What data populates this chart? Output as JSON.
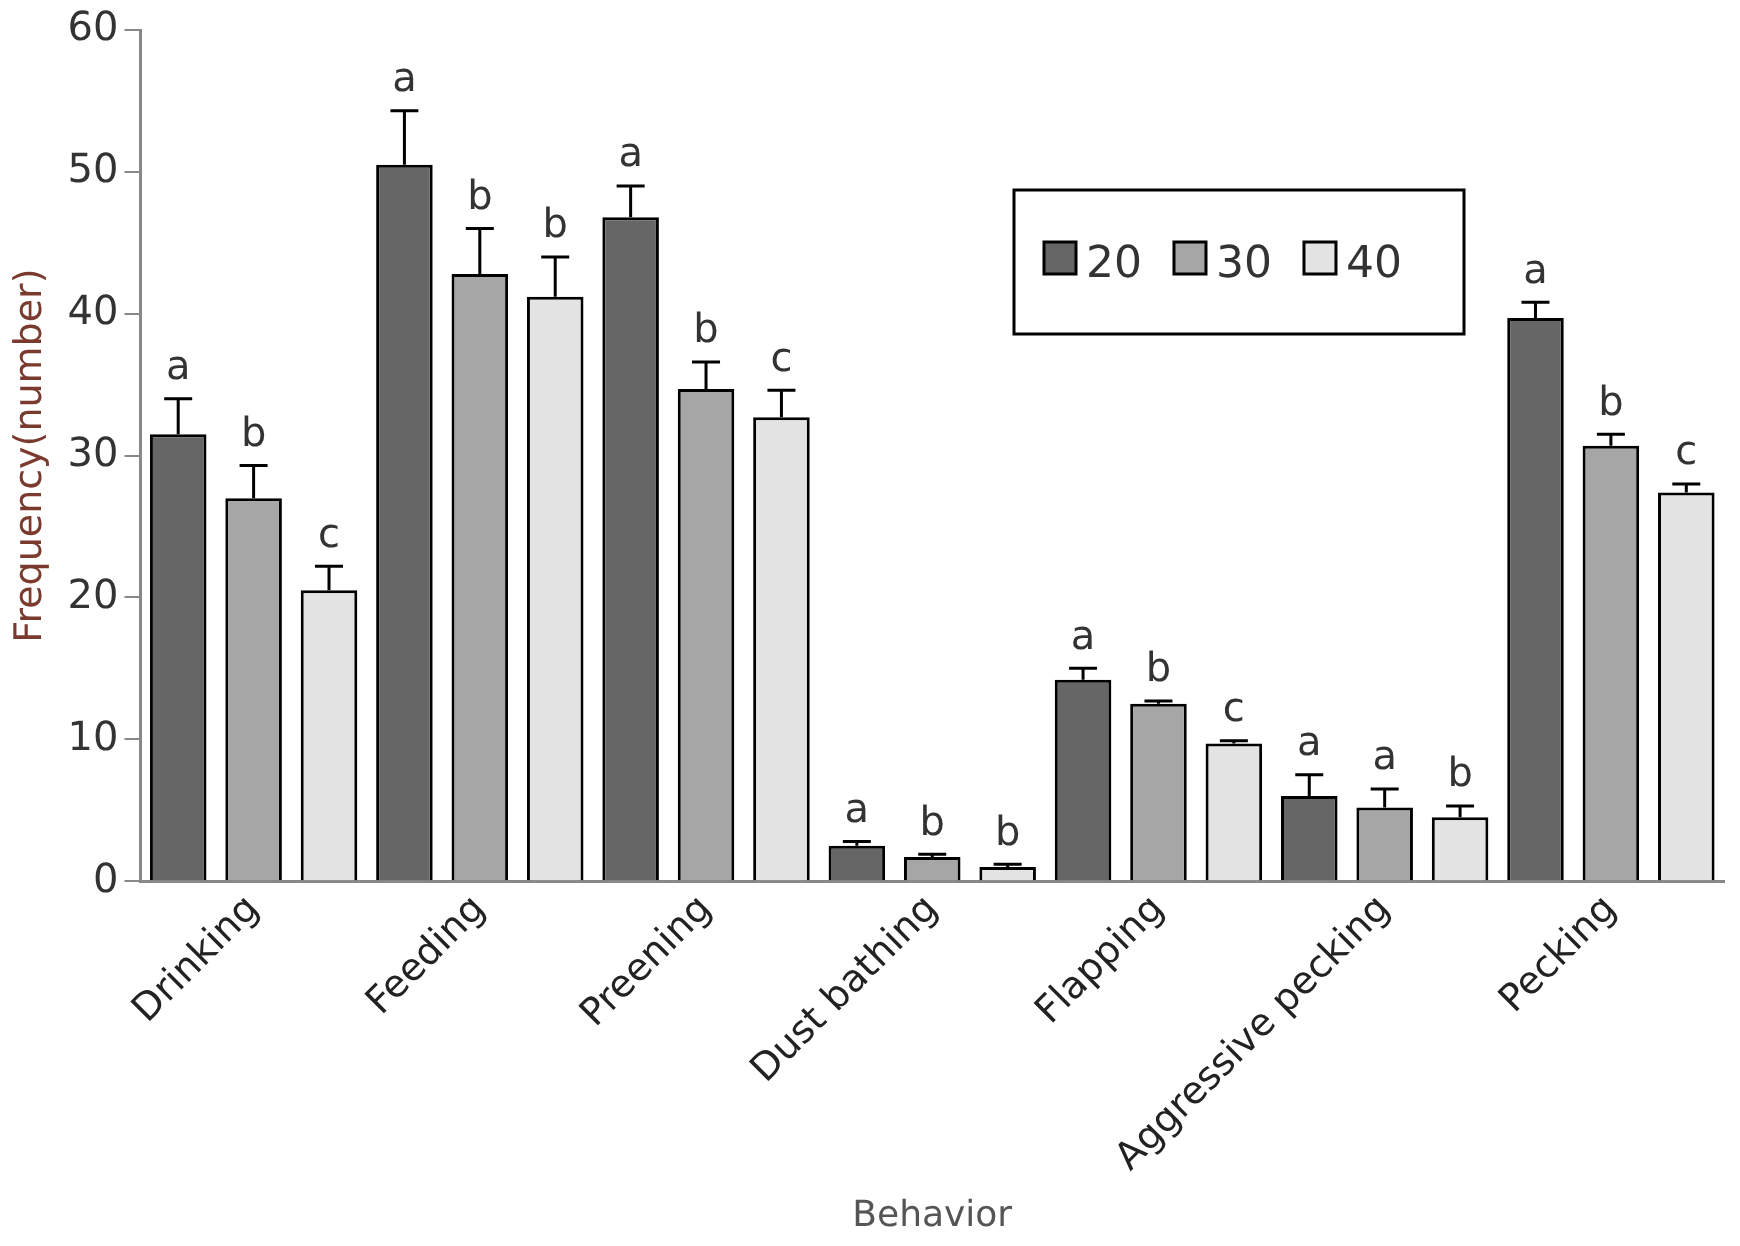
{
  "chart_data": {
    "type": "bar",
    "xlabel": "Behavior",
    "ylabel": "Frequency(number)",
    "categories": [
      "Drinking",
      "Feeding",
      "Preening",
      "Dust bathing",
      "Flapping",
      "Aggressive pecking",
      "Pecking"
    ],
    "series": [
      {
        "name": "20",
        "color": "#666666",
        "values": [
          31.5,
          50.5,
          46.8,
          2.5,
          14.2,
          6.0,
          39.7
        ],
        "errors": [
          2.5,
          3.8,
          2.2,
          0.3,
          0.8,
          1.5,
          1.1
        ],
        "value_labels": [
          "a",
          "a",
          "a",
          "a",
          "a",
          "a",
          "a"
        ]
      },
      {
        "name": "30",
        "color": "#a6a6a6",
        "values": [
          27.0,
          42.8,
          34.7,
          1.7,
          12.5,
          5.2,
          30.7
        ],
        "errors": [
          2.3,
          3.2,
          1.9,
          0.2,
          0.2,
          1.3,
          0.8
        ],
        "value_labels": [
          "b",
          "b",
          "b",
          "b",
          "b",
          "a",
          "b"
        ]
      },
      {
        "name": "40",
        "color": "#e3e3e3",
        "values": [
          20.5,
          41.2,
          32.7,
          1.0,
          9.7,
          4.5,
          27.4
        ],
        "errors": [
          1.7,
          2.8,
          1.9,
          0.2,
          0.2,
          0.8,
          0.6
        ],
        "value_labels": [
          "c",
          "b",
          "c",
          "b",
          "c",
          "b",
          "c"
        ]
      }
    ],
    "ylim": [
      0,
      60
    ],
    "yticks": [
      0,
      10,
      20,
      30,
      40,
      50,
      60
    ],
    "grid": false,
    "legend": "top right"
  }
}
